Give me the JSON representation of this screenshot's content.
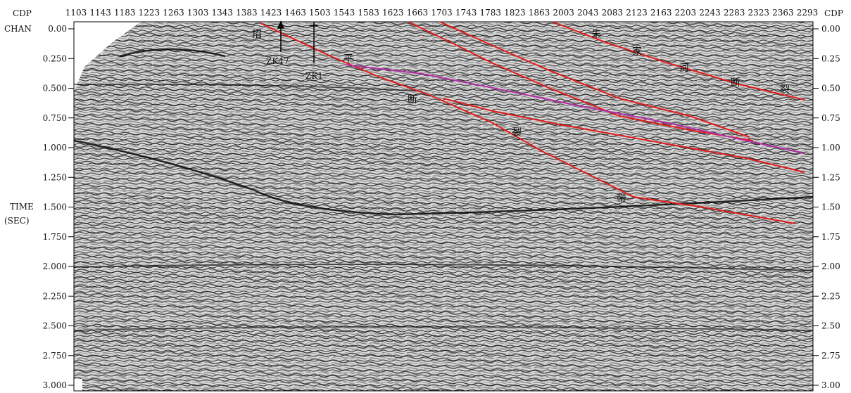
{
  "header": {
    "cdp_left": "CDP",
    "chan_left": "CHAN",
    "cdp_right": "CDP",
    "time_label": "TIME",
    "sec_label": "(SEC)"
  },
  "cdp_ticks": [
    "1103",
    "1143",
    "1183",
    "1223",
    "1263",
    "1303",
    "1343",
    "1383",
    "1423",
    "1463",
    "1503",
    "1543",
    "1583",
    "1623",
    "1663",
    "1703",
    "1743",
    "1783",
    "1823",
    "1863",
    "2003",
    "2043",
    "2083",
    "2123",
    "2163",
    "2203",
    "2243",
    "2283",
    "2323",
    "2363",
    "2293"
  ],
  "time_ticks_left": [
    "0.00",
    "0.250",
    "0.500",
    "0.750",
    "1.000",
    "1.250",
    "1.500",
    "1.750",
    "2.000",
    "2.250",
    "2.500",
    "2.750",
    "3.000"
  ],
  "time_ticks_right": [
    "0.00",
    "0.25",
    "0.50",
    "0.75",
    "1.00",
    "1.25",
    "1.50",
    "1.75",
    "2.00",
    "2.25",
    "2.50",
    "2.75",
    "3.00"
  ],
  "wells": [
    "ZK47",
    "ZK1"
  ],
  "fault_chars": [
    "招",
    "平",
    "断",
    "裂",
    "带",
    "朱",
    "家",
    "河",
    "断",
    "裂"
  ],
  "colors": {
    "fault": "#e31b1b",
    "horizon": "#b52ea8",
    "seismic": "#1a1a1a"
  }
}
